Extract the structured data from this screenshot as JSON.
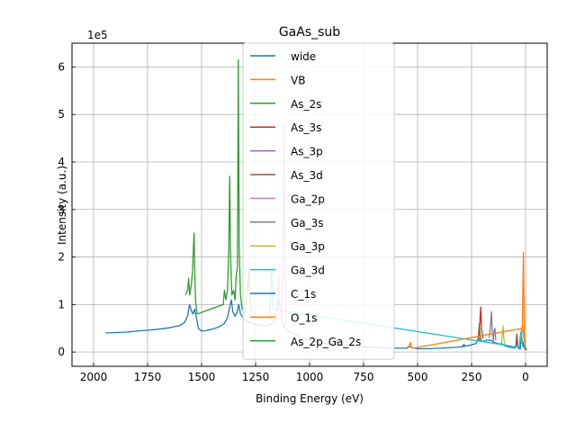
{
  "chart_data": {
    "type": "line",
    "title": "GaAs_sub",
    "xlabel": "Binding Energy (eV)",
    "ylabel": "Intensity (a.u.)",
    "y_offset_label": "1e5",
    "x_inverted": true,
    "xlim": [
      2100,
      -100
    ],
    "ylim": [
      -0.3,
      6.5
    ],
    "y_unit_scale": 100000,
    "x_ticks": [
      2000,
      1750,
      1500,
      1250,
      1000,
      750,
      500,
      250,
      0
    ],
    "y_ticks": [
      0,
      1,
      2,
      3,
      4,
      5,
      6
    ],
    "grid": true,
    "legend_position": "top-center",
    "series": [
      {
        "name": "wide",
        "color": "#1f77b4",
        "points": [
          [
            1945,
            0.4
          ],
          [
            1900,
            0.41
          ],
          [
            1850,
            0.42
          ],
          [
            1800,
            0.44
          ],
          [
            1750,
            0.46
          ],
          [
            1700,
            0.48
          ],
          [
            1650,
            0.51
          ],
          [
            1600,
            0.56
          ],
          [
            1580,
            0.62
          ],
          [
            1565,
            0.75
          ],
          [
            1556,
            1.0
          ],
          [
            1548,
            0.88
          ],
          [
            1540,
            0.8
          ],
          [
            1532,
            0.9
          ],
          [
            1525,
            0.75
          ],
          [
            1515,
            0.5
          ],
          [
            1500,
            0.44
          ],
          [
            1480,
            0.45
          ],
          [
            1450,
            0.48
          ],
          [
            1420,
            0.53
          ],
          [
            1395,
            0.6
          ],
          [
            1380,
            0.72
          ],
          [
            1370,
            0.95
          ],
          [
            1362,
            1.1
          ],
          [
            1356,
            0.85
          ],
          [
            1345,
            0.75
          ],
          [
            1335,
            0.85
          ],
          [
            1328,
            1.0
          ],
          [
            1320,
            0.8
          ],
          [
            1300,
            0.68
          ],
          [
            1275,
            0.62
          ],
          [
            1250,
            0.58
          ],
          [
            1225,
            0.56
          ],
          [
            1200,
            0.55
          ],
          [
            1175,
            0.58
          ],
          [
            1160,
            0.7
          ],
          [
            1148,
            0.95
          ],
          [
            1140,
            1.15
          ],
          [
            1133,
            0.8
          ],
          [
            1120,
            0.55
          ],
          [
            1100,
            0.45
          ],
          [
            1050,
            0.33
          ],
          [
            1000,
            0.25
          ],
          [
            950,
            0.2
          ],
          [
            900,
            0.16
          ],
          [
            850,
            0.14
          ],
          [
            800,
            0.12
          ],
          [
            750,
            0.11
          ],
          [
            700,
            0.1
          ],
          [
            650,
            0.09
          ],
          [
            600,
            0.08
          ],
          [
            550,
            0.08
          ],
          [
            540,
            0.12
          ],
          [
            532,
            0.1
          ],
          [
            500,
            0.07
          ],
          [
            450,
            0.07
          ],
          [
            400,
            0.08
          ],
          [
            350,
            0.09
          ],
          [
            300,
            0.11
          ],
          [
            260,
            0.14
          ],
          [
            230,
            0.18
          ],
          [
            218,
            0.3
          ],
          [
            212,
            0.25
          ],
          [
            200,
            0.22
          ],
          [
            180,
            0.25
          ],
          [
            160,
            0.25
          ],
          [
            145,
            0.2
          ],
          [
            120,
            0.17
          ],
          [
            110,
            0.18
          ],
          [
            100,
            0.14
          ],
          [
            90,
            0.12
          ],
          [
            70,
            0.1
          ],
          [
            50,
            0.08
          ],
          [
            41,
            0.2
          ],
          [
            35,
            0.09
          ],
          [
            25,
            0.06
          ],
          [
            20,
            0.3
          ],
          [
            12,
            0.2
          ],
          [
            5,
            0.08
          ],
          [
            0,
            0.05
          ],
          [
            -5,
            0.04
          ]
        ]
      },
      {
        "name": "VB",
        "color": "#ff7f0e",
        "points": [
          [
            20,
            0.2
          ],
          [
            15,
            0.6
          ],
          [
            10,
            0.4
          ],
          [
            5,
            0.2
          ],
          [
            0,
            0.1
          ],
          [
            -5,
            0.05
          ]
        ]
      },
      {
        "name": "As_2s",
        "color": "#2ca02c",
        "points": [
          [
            220,
            0.25
          ],
          [
            214,
            0.6
          ],
          [
            210,
            0.3
          ],
          [
            204,
            0.25
          ]
        ]
      },
      {
        "name": "As_3s",
        "color": "#d62728",
        "points": [
          [
            218,
            0.3
          ],
          [
            212,
            0.6
          ],
          [
            208,
            0.95
          ],
          [
            204,
            0.5
          ],
          [
            198,
            0.28
          ]
        ]
      },
      {
        "name": "As_3p",
        "color": "#9467bd",
        "points": [
          [
            150,
            0.2
          ],
          [
            146,
            0.45
          ],
          [
            142,
            0.5
          ],
          [
            138,
            0.25
          ]
        ]
      },
      {
        "name": "As_3d",
        "color": "#8c564b",
        "points": [
          [
            46,
            0.1
          ],
          [
            42,
            0.3
          ],
          [
            40,
            0.38
          ],
          [
            37,
            0.15
          ]
        ]
      },
      {
        "name": "Ga_2p",
        "color": "#e377c2",
        "points": [
          [
            1155,
            0.6
          ],
          [
            1146,
            1.5
          ],
          [
            1142,
            1.6
          ],
          [
            1138,
            0.9
          ],
          [
            1130,
            0.7
          ],
          [
            1125,
            1.2
          ],
          [
            1118,
            4.8
          ],
          [
            1114,
            2.0
          ],
          [
            1108,
            0.6
          ]
        ]
      },
      {
        "name": "Ga_3s",
        "color": "#7f7f7f",
        "points": [
          [
            168,
            0.3
          ],
          [
            162,
            0.6
          ],
          [
            158,
            0.85
          ],
          [
            154,
            0.4
          ],
          [
            148,
            0.25
          ]
        ]
      },
      {
        "name": "Ga_3p",
        "color": "#bcbd22",
        "points": [
          [
            112,
            0.18
          ],
          [
            107,
            0.4
          ],
          [
            104,
            0.55
          ],
          [
            100,
            0.25
          ],
          [
            96,
            0.15
          ]
        ]
      },
      {
        "name": "Ga_3d",
        "color": "#17becf",
        "points": [
          [
            1184,
            0.7
          ],
          [
            1178,
            1.6
          ],
          [
            1174,
            1.7
          ],
          [
            1168,
            0.9
          ],
          [
            30,
            0.1
          ],
          [
            24,
            0.35
          ],
          [
            20,
            0.45
          ],
          [
            16,
            0.2
          ],
          [
            12,
            0.1
          ]
        ]
      },
      {
        "name": "C_1s",
        "color": "#1f77b4",
        "points": [
          [
            296,
            0.1
          ],
          [
            290,
            0.13
          ],
          [
            285,
            0.16
          ],
          [
            280,
            0.11
          ]
        ]
      },
      {
        "name": "O_1s",
        "color": "#ff7f0e",
        "points": [
          [
            545,
            0.08
          ],
          [
            539,
            0.14
          ],
          [
            533,
            0.2
          ],
          [
            528,
            0.1
          ],
          [
            520,
            0.08
          ],
          [
            15,
            0.5
          ],
          [
            12,
            1.5
          ],
          [
            10,
            2.1
          ],
          [
            8,
            1.2
          ],
          [
            5,
            0.3
          ],
          [
            2,
            0.1
          ]
        ]
      },
      {
        "name": "As_2p_Ga_2s",
        "color": "#2ca02c",
        "points": [
          [
            1575,
            1.2
          ],
          [
            1565,
            1.3
          ],
          [
            1560,
            1.55
          ],
          [
            1555,
            1.2
          ],
          [
            1548,
            1.4
          ],
          [
            1542,
            1.7
          ],
          [
            1538,
            2.2
          ],
          [
            1535,
            2.5
          ],
          [
            1532,
            1.8
          ],
          [
            1528,
            1.1
          ],
          [
            1524,
            0.9
          ],
          [
            1520,
            0.8
          ],
          [
            1400,
            1.0
          ],
          [
            1394,
            1.3
          ],
          [
            1388,
            1.1
          ],
          [
            1380,
            1.3
          ],
          [
            1374,
            2.2
          ],
          [
            1370,
            3.7
          ],
          [
            1366,
            2.0
          ],
          [
            1360,
            1.2
          ],
          [
            1352,
            1.3
          ],
          [
            1345,
            1.1
          ],
          [
            1340,
            1.6
          ],
          [
            1334,
            1.8
          ],
          [
            1330,
            6.15
          ],
          [
            1326,
            2.2
          ],
          [
            1320,
            1.2
          ],
          [
            1312,
            0.9
          ],
          [
            1300,
            0.8
          ],
          [
            1290,
            1.2
          ],
          [
            1280,
            1.7
          ],
          [
            1275,
            1.1
          ],
          [
            1268,
            0.8
          ]
        ]
      }
    ]
  }
}
